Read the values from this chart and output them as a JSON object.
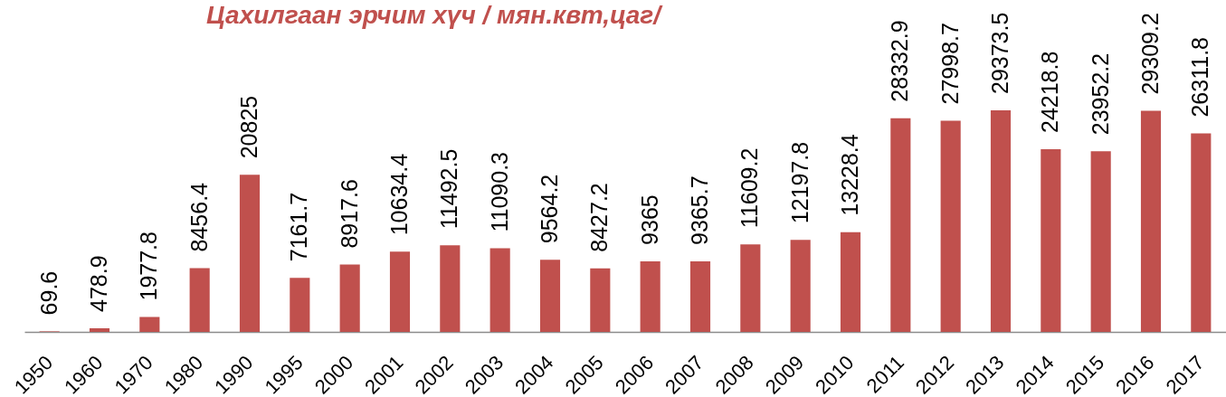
{
  "chart_data": {
    "type": "bar",
    "title": "Цахилгаан эрчим хүч / мян.квт,цаг/",
    "categories": [
      "1950",
      "1960",
      "1970",
      "1980",
      "1990",
      "1995",
      "2000",
      "2001",
      "2002",
      "2003",
      "2004",
      "2005",
      "2006",
      "2007",
      "2008",
      "2009",
      "2010",
      "2011",
      "2012",
      "2013",
      "2014",
      "2015",
      "2016",
      "2017"
    ],
    "values": [
      69.6,
      478.9,
      1977.8,
      8456.4,
      20825,
      7161.7,
      8917.6,
      10634.4,
      11492.5,
      11090.3,
      9564.2,
      8427.2,
      9365,
      9365.7,
      11609.2,
      12197.8,
      13228.4,
      28332.9,
      27998.7,
      29373.5,
      24218.8,
      23952.2,
      29309.2,
      26311.8
    ],
    "color": "#c0504d",
    "data_labels": true
  }
}
